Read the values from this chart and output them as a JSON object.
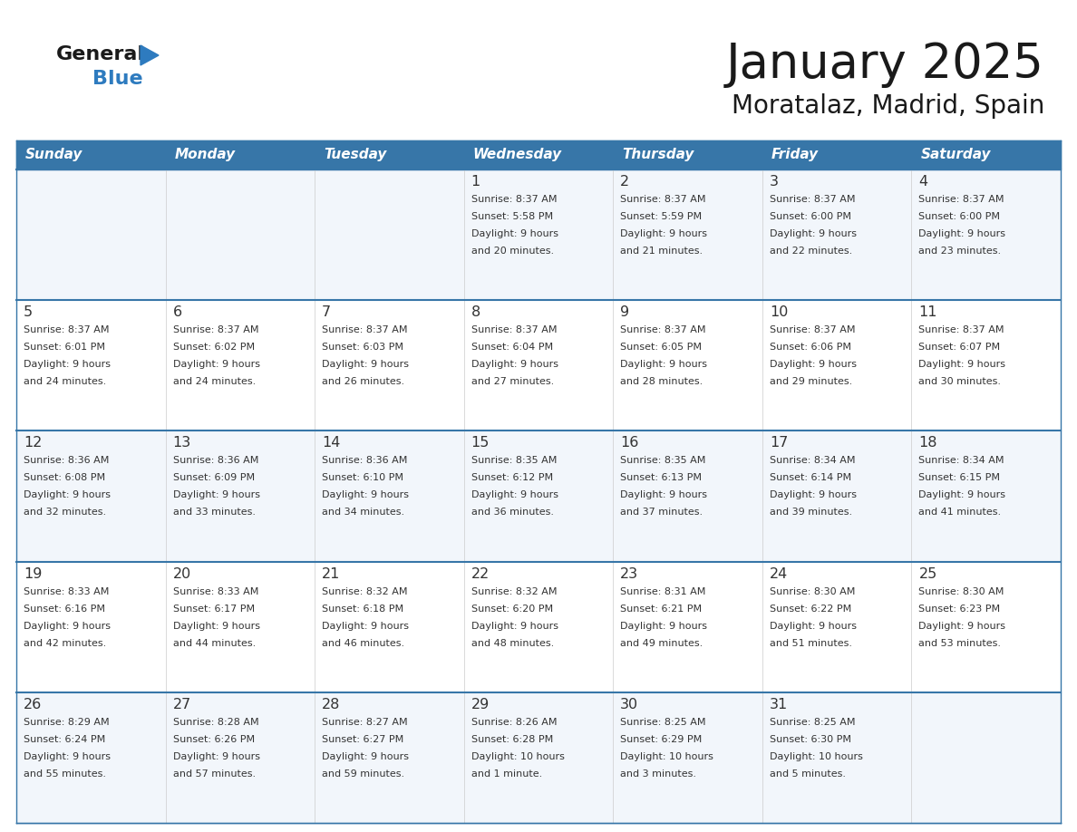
{
  "title": "January 2025",
  "subtitle": "Moratalaz, Madrid, Spain",
  "header_bg_color": "#3776a8",
  "header_text_color": "#ffffff",
  "row_bg_colors": [
    "#f2f6fb",
    "#ffffff",
    "#f2f6fb",
    "#ffffff",
    "#f2f6fb"
  ],
  "separator_color": "#3776a8",
  "day_headers": [
    "Sunday",
    "Monday",
    "Tuesday",
    "Wednesday",
    "Thursday",
    "Friday",
    "Saturday"
  ],
  "title_color": "#1a1a1a",
  "subtitle_color": "#1a1a1a",
  "cell_text_color": "#333333",
  "cell_num_color": "#333333",
  "days_data": [
    {
      "day": 1,
      "col": 3,
      "row": 0,
      "sunrise": "8:37 AM",
      "sunset": "5:58 PM",
      "daylight": "9 hours",
      "daylight2": "and 20 minutes."
    },
    {
      "day": 2,
      "col": 4,
      "row": 0,
      "sunrise": "8:37 AM",
      "sunset": "5:59 PM",
      "daylight": "9 hours",
      "daylight2": "and 21 minutes."
    },
    {
      "day": 3,
      "col": 5,
      "row": 0,
      "sunrise": "8:37 AM",
      "sunset": "6:00 PM",
      "daylight": "9 hours",
      "daylight2": "and 22 minutes."
    },
    {
      "day": 4,
      "col": 6,
      "row": 0,
      "sunrise": "8:37 AM",
      "sunset": "6:00 PM",
      "daylight": "9 hours",
      "daylight2": "and 23 minutes."
    },
    {
      "day": 5,
      "col": 0,
      "row": 1,
      "sunrise": "8:37 AM",
      "sunset": "6:01 PM",
      "daylight": "9 hours",
      "daylight2": "and 24 minutes."
    },
    {
      "day": 6,
      "col": 1,
      "row": 1,
      "sunrise": "8:37 AM",
      "sunset": "6:02 PM",
      "daylight": "9 hours",
      "daylight2": "and 24 minutes."
    },
    {
      "day": 7,
      "col": 2,
      "row": 1,
      "sunrise": "8:37 AM",
      "sunset": "6:03 PM",
      "daylight": "9 hours",
      "daylight2": "and 26 minutes."
    },
    {
      "day": 8,
      "col": 3,
      "row": 1,
      "sunrise": "8:37 AM",
      "sunset": "6:04 PM",
      "daylight": "9 hours",
      "daylight2": "and 27 minutes."
    },
    {
      "day": 9,
      "col": 4,
      "row": 1,
      "sunrise": "8:37 AM",
      "sunset": "6:05 PM",
      "daylight": "9 hours",
      "daylight2": "and 28 minutes."
    },
    {
      "day": 10,
      "col": 5,
      "row": 1,
      "sunrise": "8:37 AM",
      "sunset": "6:06 PM",
      "daylight": "9 hours",
      "daylight2": "and 29 minutes."
    },
    {
      "day": 11,
      "col": 6,
      "row": 1,
      "sunrise": "8:37 AM",
      "sunset": "6:07 PM",
      "daylight": "9 hours",
      "daylight2": "and 30 minutes."
    },
    {
      "day": 12,
      "col": 0,
      "row": 2,
      "sunrise": "8:36 AM",
      "sunset": "6:08 PM",
      "daylight": "9 hours",
      "daylight2": "and 32 minutes."
    },
    {
      "day": 13,
      "col": 1,
      "row": 2,
      "sunrise": "8:36 AM",
      "sunset": "6:09 PM",
      "daylight": "9 hours",
      "daylight2": "and 33 minutes."
    },
    {
      "day": 14,
      "col": 2,
      "row": 2,
      "sunrise": "8:36 AM",
      "sunset": "6:10 PM",
      "daylight": "9 hours",
      "daylight2": "and 34 minutes."
    },
    {
      "day": 15,
      "col": 3,
      "row": 2,
      "sunrise": "8:35 AM",
      "sunset": "6:12 PM",
      "daylight": "9 hours",
      "daylight2": "and 36 minutes."
    },
    {
      "day": 16,
      "col": 4,
      "row": 2,
      "sunrise": "8:35 AM",
      "sunset": "6:13 PM",
      "daylight": "9 hours",
      "daylight2": "and 37 minutes."
    },
    {
      "day": 17,
      "col": 5,
      "row": 2,
      "sunrise": "8:34 AM",
      "sunset": "6:14 PM",
      "daylight": "9 hours",
      "daylight2": "and 39 minutes."
    },
    {
      "day": 18,
      "col": 6,
      "row": 2,
      "sunrise": "8:34 AM",
      "sunset": "6:15 PM",
      "daylight": "9 hours",
      "daylight2": "and 41 minutes."
    },
    {
      "day": 19,
      "col": 0,
      "row": 3,
      "sunrise": "8:33 AM",
      "sunset": "6:16 PM",
      "daylight": "9 hours",
      "daylight2": "and 42 minutes."
    },
    {
      "day": 20,
      "col": 1,
      "row": 3,
      "sunrise": "8:33 AM",
      "sunset": "6:17 PM",
      "daylight": "9 hours",
      "daylight2": "and 44 minutes."
    },
    {
      "day": 21,
      "col": 2,
      "row": 3,
      "sunrise": "8:32 AM",
      "sunset": "6:18 PM",
      "daylight": "9 hours",
      "daylight2": "and 46 minutes."
    },
    {
      "day": 22,
      "col": 3,
      "row": 3,
      "sunrise": "8:32 AM",
      "sunset": "6:20 PM",
      "daylight": "9 hours",
      "daylight2": "and 48 minutes."
    },
    {
      "day": 23,
      "col": 4,
      "row": 3,
      "sunrise": "8:31 AM",
      "sunset": "6:21 PM",
      "daylight": "9 hours",
      "daylight2": "and 49 minutes."
    },
    {
      "day": 24,
      "col": 5,
      "row": 3,
      "sunrise": "8:30 AM",
      "sunset": "6:22 PM",
      "daylight": "9 hours",
      "daylight2": "and 51 minutes."
    },
    {
      "day": 25,
      "col": 6,
      "row": 3,
      "sunrise": "8:30 AM",
      "sunset": "6:23 PM",
      "daylight": "9 hours",
      "daylight2": "and 53 minutes."
    },
    {
      "day": 26,
      "col": 0,
      "row": 4,
      "sunrise": "8:29 AM",
      "sunset": "6:24 PM",
      "daylight": "9 hours",
      "daylight2": "and 55 minutes."
    },
    {
      "day": 27,
      "col": 1,
      "row": 4,
      "sunrise": "8:28 AM",
      "sunset": "6:26 PM",
      "daylight": "9 hours",
      "daylight2": "and 57 minutes."
    },
    {
      "day": 28,
      "col": 2,
      "row": 4,
      "sunrise": "8:27 AM",
      "sunset": "6:27 PM",
      "daylight": "9 hours",
      "daylight2": "and 59 minutes."
    },
    {
      "day": 29,
      "col": 3,
      "row": 4,
      "sunrise": "8:26 AM",
      "sunset": "6:28 PM",
      "daylight": "10 hours",
      "daylight2": "and 1 minute."
    },
    {
      "day": 30,
      "col": 4,
      "row": 4,
      "sunrise": "8:25 AM",
      "sunset": "6:29 PM",
      "daylight": "10 hours",
      "daylight2": "and 3 minutes."
    },
    {
      "day": 31,
      "col": 5,
      "row": 4,
      "sunrise": "8:25 AM",
      "sunset": "6:30 PM",
      "daylight": "10 hours",
      "daylight2": "and 5 minutes."
    }
  ],
  "logo_general_color": "#1a1a1a",
  "logo_blue_color": "#2e7bbf",
  "logo_triangle_color": "#2e7bbf"
}
